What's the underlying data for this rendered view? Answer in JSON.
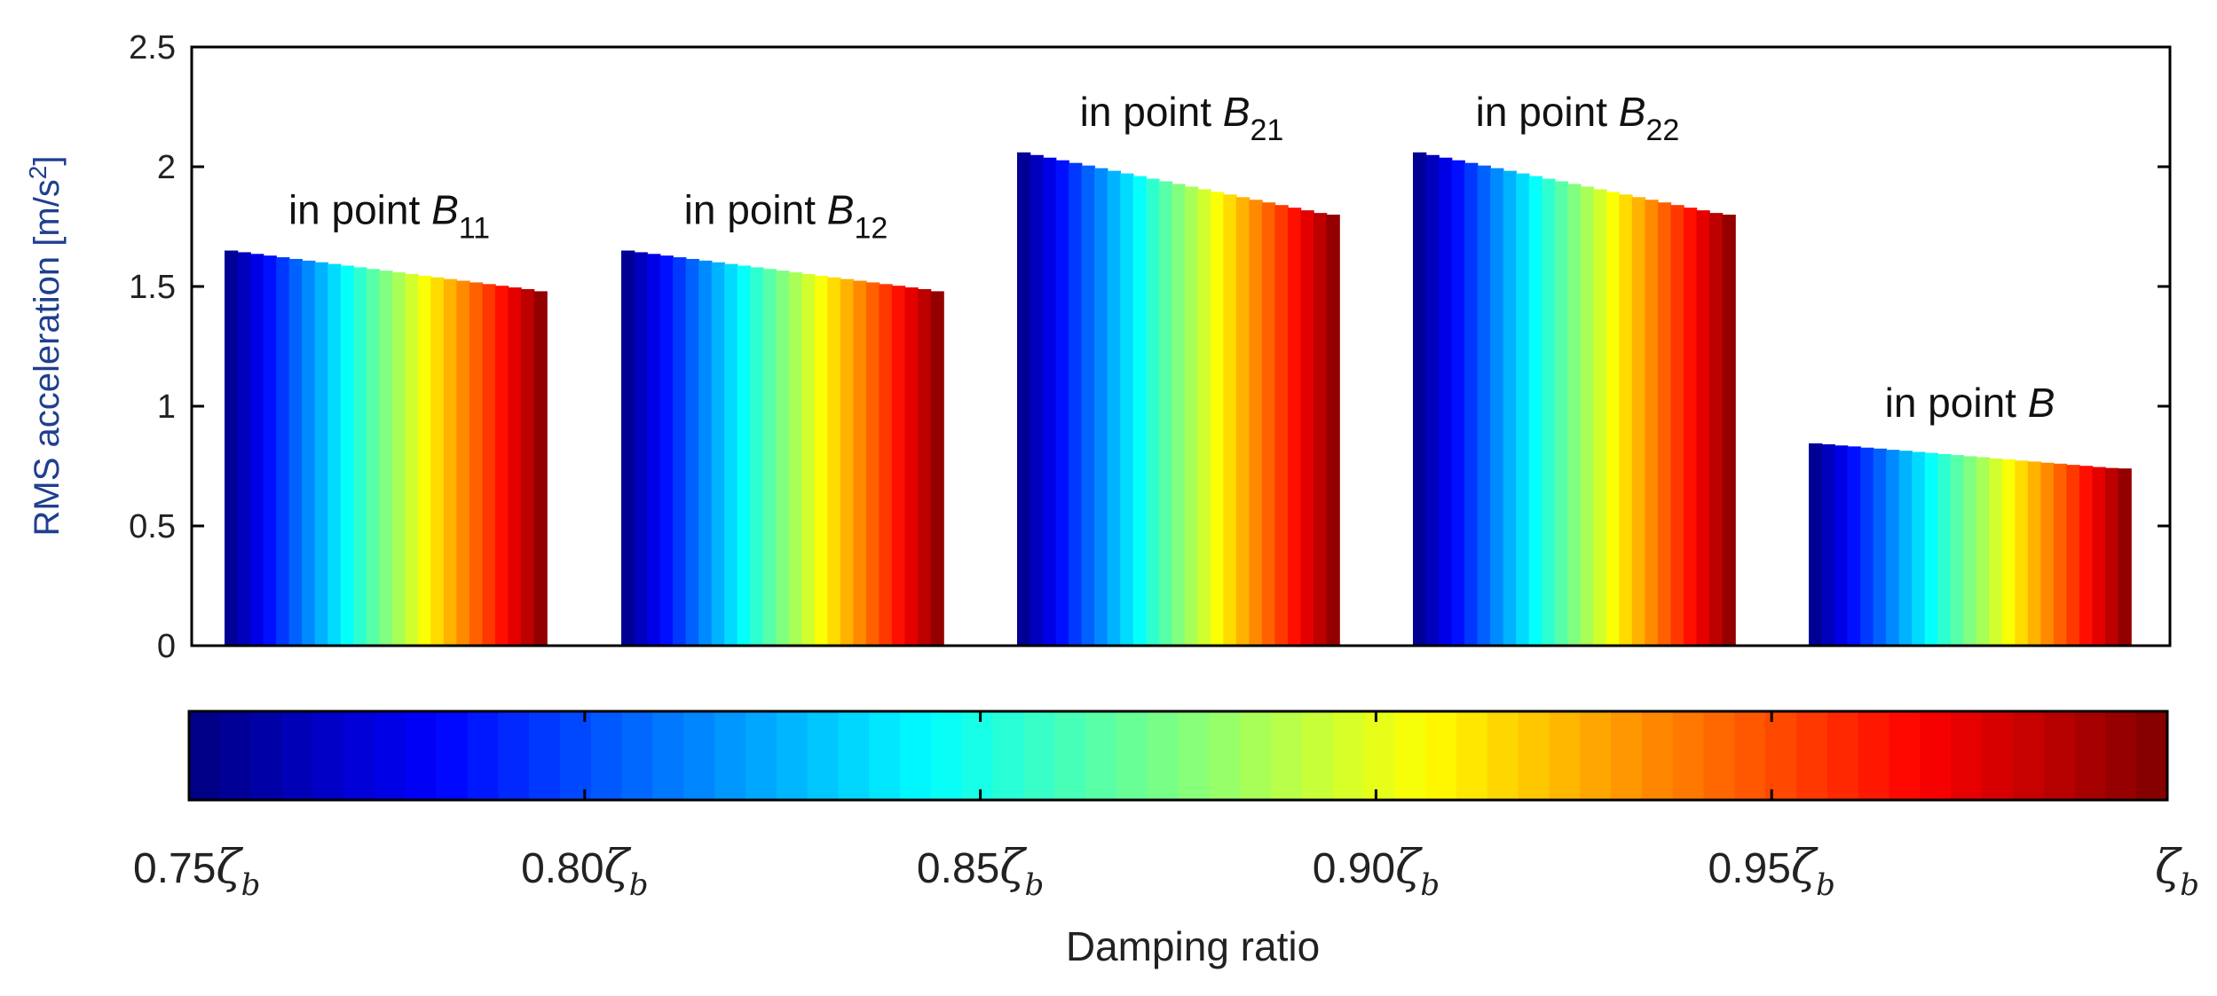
{
  "chart_data": {
    "type": "bar",
    "ylabel": "RMS acceleration [m/s",
    "ylabel_superscript": "2",
    "ylabel_close": "]",
    "ylim": [
      0,
      2.5
    ],
    "yticks": [
      "0",
      "0.5",
      "1",
      "1.5",
      "2",
      "2.5"
    ],
    "groups": [
      {
        "label_prefix": "in point ",
        "label_var": "B",
        "label_sub": "11",
        "values": [
          1.65,
          1.643,
          1.636,
          1.629,
          1.622,
          1.615,
          1.608,
          1.601,
          1.594,
          1.587,
          1.58,
          1.573,
          1.566,
          1.559,
          1.552,
          1.545,
          1.538,
          1.531,
          1.524,
          1.517,
          1.51,
          1.503,
          1.496,
          1.489,
          1.48
        ]
      },
      {
        "label_prefix": "in point ",
        "label_var": "B",
        "label_sub": "12",
        "values": [
          1.65,
          1.643,
          1.636,
          1.629,
          1.622,
          1.615,
          1.608,
          1.601,
          1.594,
          1.587,
          1.58,
          1.573,
          1.566,
          1.559,
          1.552,
          1.545,
          1.538,
          1.531,
          1.524,
          1.517,
          1.51,
          1.503,
          1.496,
          1.489,
          1.48
        ]
      },
      {
        "label_prefix": "in point ",
        "label_var": "B",
        "label_sub": "21",
        "values": [
          2.06,
          2.049,
          2.038,
          2.027,
          2.016,
          2.005,
          1.994,
          1.983,
          1.972,
          1.961,
          1.95,
          1.939,
          1.928,
          1.917,
          1.906,
          1.895,
          1.884,
          1.873,
          1.862,
          1.851,
          1.84,
          1.829,
          1.818,
          1.807,
          1.8
        ]
      },
      {
        "label_prefix": "in point ",
        "label_var": "B",
        "label_sub": "22",
        "values": [
          2.06,
          2.049,
          2.038,
          2.027,
          2.016,
          2.005,
          1.994,
          1.983,
          1.972,
          1.961,
          1.95,
          1.939,
          1.928,
          1.917,
          1.906,
          1.895,
          1.884,
          1.873,
          1.862,
          1.851,
          1.84,
          1.829,
          1.818,
          1.807,
          1.8
        ]
      },
      {
        "label_prefix": "in point ",
        "label_var": "B",
        "label_sub": "",
        "values": [
          0.845,
          0.841,
          0.836,
          0.832,
          0.827,
          0.823,
          0.818,
          0.814,
          0.809,
          0.805,
          0.8,
          0.796,
          0.791,
          0.787,
          0.782,
          0.778,
          0.773,
          0.769,
          0.764,
          0.76,
          0.755,
          0.751,
          0.746,
          0.742,
          0.74
        ]
      }
    ],
    "colorbar": {
      "ticks": [
        {
          "num": "0.75",
          "sym": "ζ",
          "sub": "b"
        },
        {
          "num": "0.80",
          "sym": "ζ",
          "sub": "b"
        },
        {
          "num": "0.85",
          "sym": "ζ",
          "sub": "b"
        },
        {
          "num": "0.90",
          "sym": "ζ",
          "sub": "b"
        },
        {
          "num": "0.95",
          "sym": "ζ",
          "sub": "b"
        },
        {
          "num": "",
          "sym": "ζ",
          "sub": "b"
        }
      ],
      "range": [
        0.75,
        1.0
      ],
      "colormap": "jet",
      "xlabel": "Damping ratio"
    }
  }
}
